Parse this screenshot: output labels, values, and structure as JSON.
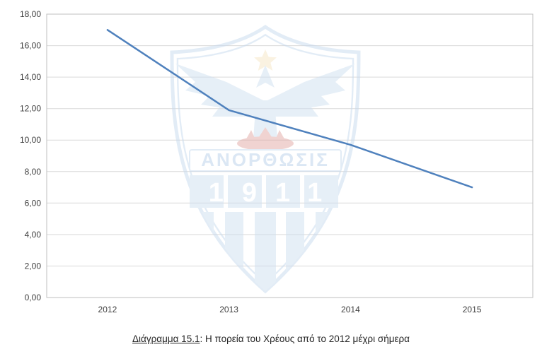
{
  "chart_data": {
    "type": "line",
    "title": "Η πορεία του Χρέους από το 2012 μέχρι σήμερα",
    "categories": [
      "2012",
      "2013",
      "2014",
      "2015"
    ],
    "values": [
      17.0,
      11.9,
      9.7,
      7.0
    ],
    "xlabel": "",
    "ylabel": "",
    "ylim": [
      0,
      18
    ],
    "y_tick_step": 2,
    "y_tick_labels": [
      "0,00",
      "2,00",
      "4,00",
      "6,00",
      "8,00",
      "10,00",
      "12,00",
      "14,00",
      "16,00",
      "18,00"
    ],
    "grid": true,
    "legend": "none",
    "line_color": "#4f81bd"
  },
  "caption": {
    "label": "Διάγραμμα 15.1",
    "text": ": Η πορεία του Χρέους από το 2012 μέχρι σήμερα"
  },
  "watermark": {
    "club_name": "ΑΝΟΡΘΩΣΙΣ",
    "year": "1911"
  },
  "colors": {
    "line": "#4f81bd",
    "grid": "#d9d9d9",
    "plot_border": "#bfbfbf",
    "tick_text": "#404040",
    "watermark_blue": "#cfe0f1",
    "watermark_outline": "#c7daee",
    "watermark_star": "#f6e7c4",
    "watermark_red": "#e3a9a5"
  }
}
